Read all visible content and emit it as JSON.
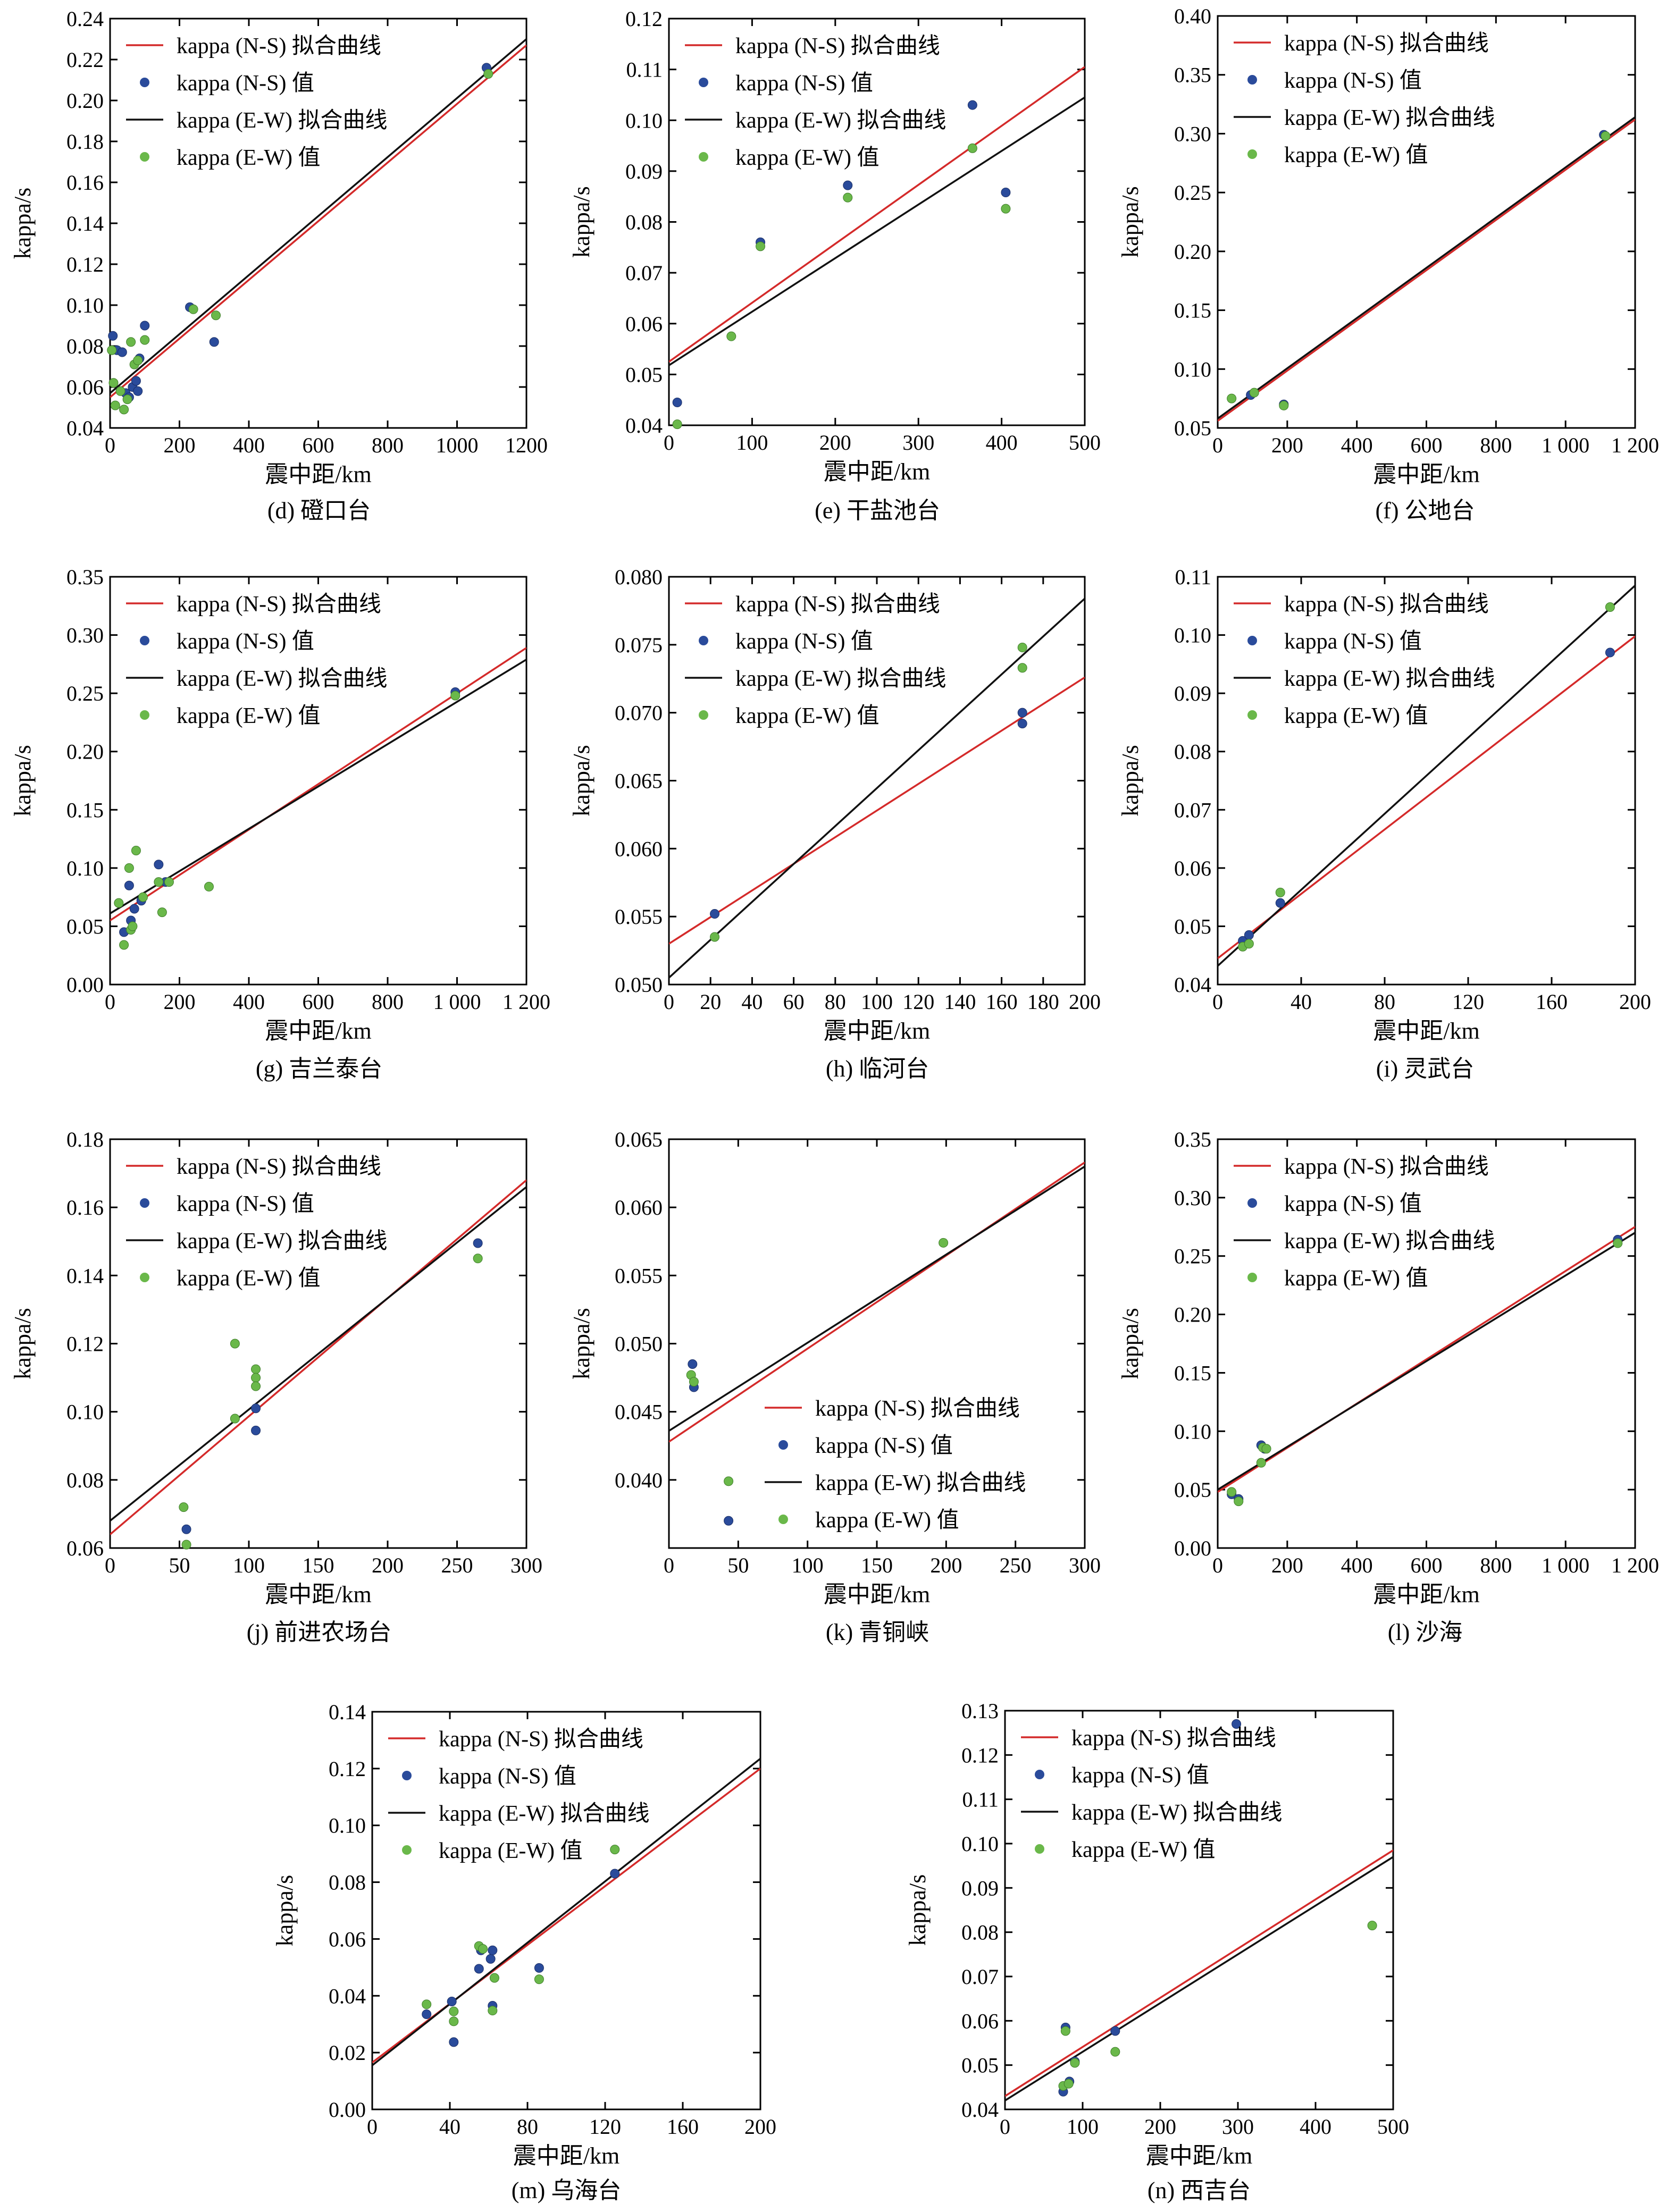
{
  "legend_labels": {
    "ns_fit": "kappa (N-S) 拟合曲线",
    "ns_val": "kappa (N-S) 值",
    "ew_fit": "kappa (E-W) 拟合曲线",
    "ew_val": "kappa (E-W) 值"
  },
  "colors": {
    "ns_line": "#d42a2a",
    "ew_line": "#111111",
    "ns_point": "#2a4b9b",
    "ew_point": "#6ab84a"
  },
  "chart_data": [
    {
      "type": "scatter",
      "caption": "(d) 磴口台",
      "xlabel": "震中距/km",
      "ylabel": "kappa/s",
      "xlim": [
        0,
        1200
      ],
      "ylim": [
        0.04,
        0.24
      ],
      "xticks": [
        0,
        200,
        400,
        600,
        800,
        1000,
        1200
      ],
      "xtick_labels": [
        "0",
        "200",
        "400",
        "600",
        "800",
        "1000",
        "1200"
      ],
      "yticks": [
        0.04,
        0.06,
        0.08,
        0.1,
        0.12,
        0.14,
        0.16,
        0.18,
        0.2,
        0.22,
        0.24
      ],
      "ytick_labels": [
        "0.04",
        "0.06",
        "0.08",
        "0.10",
        "0.12",
        "0.14",
        "0.16",
        "0.18",
        "0.20",
        "0.22",
        "0.24"
      ],
      "legend_position": "top-left",
      "ns_fit": [
        [
          0,
          0.055
        ],
        [
          1200,
          0.227
        ]
      ],
      "ew_fit": [
        [
          0,
          0.057
        ],
        [
          1200,
          0.23
        ]
      ],
      "ns_points": [
        [
          8,
          0.085
        ],
        [
          20,
          0.078
        ],
        [
          35,
          0.077
        ],
        [
          45,
          0.057
        ],
        [
          55,
          0.055
        ],
        [
          65,
          0.06
        ],
        [
          75,
          0.063
        ],
        [
          80,
          0.058
        ],
        [
          85,
          0.074
        ],
        [
          100,
          0.09
        ],
        [
          230,
          0.099
        ],
        [
          300,
          0.082
        ],
        [
          1085,
          0.216
        ]
      ],
      "ew_points": [
        [
          5,
          0.078
        ],
        [
          10,
          0.062
        ],
        [
          15,
          0.051
        ],
        [
          30,
          0.058
        ],
        [
          40,
          0.049
        ],
        [
          50,
          0.054
        ],
        [
          60,
          0.082
        ],
        [
          70,
          0.071
        ],
        [
          80,
          0.073
        ],
        [
          100,
          0.083
        ],
        [
          240,
          0.098
        ],
        [
          305,
          0.095
        ],
        [
          1090,
          0.213
        ]
      ]
    },
    {
      "type": "scatter",
      "caption": "(e) 干盐池台",
      "xlabel": "震中距/km",
      "ylabel": "kappa/s",
      "xlim": [
        0,
        500
      ],
      "ylim": [
        0.04,
        0.12
      ],
      "xticks": [
        0,
        100,
        200,
        300,
        400,
        500
      ],
      "xtick_labels": [
        "0",
        "100",
        "200",
        "300",
        "400",
        "500"
      ],
      "yticks": [
        0.04,
        0.05,
        0.06,
        0.07,
        0.08,
        0.09,
        0.1,
        0.11,
        0.12
      ],
      "ytick_labels": [
        "0.04",
        "0.05",
        "0.06",
        "0.07",
        "0.08",
        "0.09",
        "0.10",
        "0.11",
        "0.12"
      ],
      "legend_position": "top-left",
      "ns_fit": [
        [
          0,
          0.0525
        ],
        [
          500,
          0.1105
        ]
      ],
      "ew_fit": [
        [
          0,
          0.0518
        ],
        [
          500,
          0.1045
        ]
      ],
      "ns_points": [
        [
          10,
          0.0445
        ],
        [
          110,
          0.076
        ],
        [
          215,
          0.0872
        ],
        [
          365,
          0.103
        ],
        [
          405,
          0.0858
        ]
      ],
      "ew_points": [
        [
          10,
          0.0402
        ],
        [
          75,
          0.0575
        ],
        [
          110,
          0.0752
        ],
        [
          215,
          0.0848
        ],
        [
          365,
          0.0945
        ],
        [
          405,
          0.0826
        ]
      ]
    },
    {
      "type": "scatter",
      "caption": "(f) 公地台",
      "xlabel": "震中距/km",
      "ylabel": "kappa/s",
      "xlim": [
        0,
        1200
      ],
      "ylim": [
        0.05,
        0.4
      ],
      "xticks": [
        0,
        200,
        400,
        600,
        800,
        1000,
        1200
      ],
      "xtick_labels": [
        "0",
        "200",
        "400",
        "600",
        "800",
        "1 000",
        "1 200"
      ],
      "yticks": [
        0.05,
        0.1,
        0.15,
        0.2,
        0.25,
        0.3,
        0.35,
        0.4
      ],
      "ytick_labels": [
        "0.05",
        "0.10",
        "0.15",
        "0.20",
        "0.25",
        "0.30",
        "0.35",
        "0.40"
      ],
      "legend_position": "top-left",
      "ns_fit": [
        [
          0,
          0.056
        ],
        [
          1200,
          0.312
        ]
      ],
      "ew_fit": [
        [
          0,
          0.058
        ],
        [
          1200,
          0.314
        ]
      ],
      "ns_points": [
        [
          95,
          0.078
        ],
        [
          190,
          0.07
        ],
        [
          1110,
          0.299
        ]
      ],
      "ew_points": [
        [
          40,
          0.075
        ],
        [
          105,
          0.08
        ],
        [
          190,
          0.069
        ],
        [
          1115,
          0.298
        ]
      ]
    },
    {
      "type": "scatter",
      "caption": "(g) 吉兰泰台",
      "xlabel": "震中距/km",
      "ylabel": "kappa/s",
      "xlim": [
        0,
        1200
      ],
      "ylim": [
        0.0,
        0.35
      ],
      "xticks": [
        0,
        200,
        400,
        600,
        800,
        1000,
        1200
      ],
      "xtick_labels": [
        "0",
        "200",
        "400",
        "600",
        "800",
        "1 000",
        "1 200"
      ],
      "yticks": [
        0.0,
        0.05,
        0.1,
        0.15,
        0.2,
        0.25,
        0.3,
        0.35
      ],
      "ytick_labels": [
        "0.00",
        "0.05",
        "0.10",
        "0.15",
        "0.20",
        "0.25",
        "0.30",
        "0.35"
      ],
      "legend_position": "top-left",
      "ns_fit": [
        [
          0,
          0.055
        ],
        [
          1200,
          0.289
        ]
      ],
      "ew_fit": [
        [
          0,
          0.061
        ],
        [
          1200,
          0.279
        ]
      ],
      "ns_points": [
        [
          40,
          0.045
        ],
        [
          55,
          0.085
        ],
        [
          60,
          0.055
        ],
        [
          70,
          0.065
        ],
        [
          90,
          0.072
        ],
        [
          140,
          0.103
        ],
        [
          160,
          0.088
        ],
        [
          995,
          0.251
        ]
      ],
      "ew_points": [
        [
          25,
          0.07
        ],
        [
          40,
          0.034
        ],
        [
          55,
          0.1
        ],
        [
          60,
          0.047
        ],
        [
          65,
          0.05
        ],
        [
          75,
          0.115
        ],
        [
          95,
          0.075
        ],
        [
          140,
          0.088
        ],
        [
          150,
          0.062
        ],
        [
          170,
          0.088
        ],
        [
          285,
          0.084
        ],
        [
          995,
          0.248
        ]
      ]
    },
    {
      "type": "scatter",
      "caption": "(h) 临河台",
      "xlabel": "震中距/km",
      "ylabel": "kappa/s",
      "xlim": [
        0,
        200
      ],
      "ylim": [
        0.05,
        0.08
      ],
      "xticks": [
        0,
        20,
        40,
        60,
        80,
        100,
        120,
        140,
        160,
        180,
        200
      ],
      "xtick_labels": [
        "0",
        "20",
        "40",
        "60",
        "80",
        "100",
        "120",
        "140",
        "160",
        "180",
        "200"
      ],
      "yticks": [
        0.05,
        0.055,
        0.06,
        0.065,
        0.07,
        0.075,
        0.08
      ],
      "ytick_labels": [
        "0.050",
        "0.055",
        "0.060",
        "0.065",
        "0.070",
        "0.075",
        "0.080"
      ],
      "legend_position": "top-left",
      "ns_fit": [
        [
          0,
          0.053
        ],
        [
          200,
          0.0726
        ]
      ],
      "ew_fit": [
        [
          0,
          0.0505
        ],
        [
          200,
          0.0784
        ]
      ],
      "ns_points": [
        [
          22,
          0.0552
        ],
        [
          170,
          0.07
        ],
        [
          170,
          0.0692
        ]
      ],
      "ew_points": [
        [
          22,
          0.0535
        ],
        [
          170,
          0.0748
        ],
        [
          170,
          0.0733
        ]
      ]
    },
    {
      "type": "scatter",
      "caption": "(i) 灵武台",
      "xlabel": "震中距/km",
      "ylabel": "kappa/s",
      "xlim": [
        0,
        200
      ],
      "ylim": [
        0.04,
        0.11
      ],
      "xticks": [
        0,
        40,
        80,
        120,
        160,
        200
      ],
      "xtick_labels": [
        "0",
        "40",
        "80",
        "120",
        "160",
        "200"
      ],
      "yticks": [
        0.04,
        0.05,
        0.06,
        0.07,
        0.08,
        0.09,
        0.1,
        0.11
      ],
      "ytick_labels": [
        "0.04",
        "0.05",
        "0.06",
        "0.07",
        "0.08",
        "0.09",
        "0.10",
        "0.11"
      ],
      "legend_position": "top-left",
      "ns_fit": [
        [
          0,
          0.0445
        ],
        [
          200,
          0.0998
        ]
      ],
      "ew_fit": [
        [
          0,
          0.0432
        ],
        [
          200,
          0.1085
        ]
      ],
      "ns_points": [
        [
          12,
          0.0475
        ],
        [
          15,
          0.0485
        ],
        [
          30,
          0.054
        ],
        [
          188,
          0.097
        ]
      ],
      "ew_points": [
        [
          12,
          0.0465
        ],
        [
          15,
          0.047
        ],
        [
          30,
          0.0558
        ],
        [
          188,
          0.1048
        ]
      ]
    },
    {
      "type": "scatter",
      "caption": "(j) 前进农场台",
      "xlabel": "震中距/km",
      "ylabel": "kappa/s",
      "xlim": [
        0,
        300
      ],
      "ylim": [
        0.06,
        0.18
      ],
      "xticks": [
        0,
        50,
        100,
        150,
        200,
        250,
        300
      ],
      "xtick_labels": [
        "0",
        "50",
        "100",
        "150",
        "200",
        "250",
        "300"
      ],
      "yticks": [
        0.06,
        0.08,
        0.1,
        0.12,
        0.14,
        0.16,
        0.18
      ],
      "ytick_labels": [
        "0.06",
        "0.08",
        "0.10",
        "0.12",
        "0.14",
        "0.16",
        "0.18"
      ],
      "legend_position": "top-left",
      "ns_fit": [
        [
          0,
          0.064
        ],
        [
          300,
          0.168
        ]
      ],
      "ew_fit": [
        [
          0,
          0.068
        ],
        [
          300,
          0.166
        ]
      ],
      "ns_points": [
        [
          55,
          0.0655
        ],
        [
          105,
          0.101
        ],
        [
          105,
          0.0945
        ],
        [
          265,
          0.1495
        ]
      ],
      "ew_points": [
        [
          53,
          0.072
        ],
        [
          55,
          0.061
        ],
        [
          90,
          0.098
        ],
        [
          90,
          0.12
        ],
        [
          105,
          0.1125
        ],
        [
          105,
          0.11
        ],
        [
          105,
          0.1075
        ],
        [
          265,
          0.145
        ]
      ]
    },
    {
      "type": "scatter",
      "caption": "(k) 青铜峡",
      "xlabel": "震中距/km",
      "ylabel": "kappa/s",
      "xlim": [
        0,
        300
      ],
      "ylim": [
        0.035,
        0.065
      ],
      "xticks": [
        0,
        50,
        100,
        150,
        200,
        250,
        300
      ],
      "xtick_labels": [
        "0",
        "50",
        "100",
        "150",
        "200",
        "250",
        "300"
      ],
      "yticks": [
        0.04,
        0.045,
        0.05,
        0.055,
        0.06,
        0.065
      ],
      "ytick_labels": [
        "0.040",
        "0.045",
        "0.050",
        "0.055",
        "0.060",
        "0.065"
      ],
      "legend_position": "center",
      "ns_fit": [
        [
          0,
          0.0428
        ],
        [
          300,
          0.0633
        ]
      ],
      "ew_fit": [
        [
          0,
          0.0436
        ],
        [
          300,
          0.063
        ]
      ],
      "ns_points": [
        [
          17,
          0.0485
        ],
        [
          18,
          0.0468
        ],
        [
          43,
          0.037
        ]
      ],
      "ew_points": [
        [
          16,
          0.0477
        ],
        [
          18,
          0.0472
        ],
        [
          43,
          0.0399
        ],
        [
          198,
          0.0574
        ]
      ]
    },
    {
      "type": "scatter",
      "caption": "(l) 沙海",
      "xlabel": "震中距/km",
      "ylabel": "kappa/s",
      "xlim": [
        0,
        1200
      ],
      "ylim": [
        0.0,
        0.35
      ],
      "xticks": [
        0,
        200,
        400,
        600,
        800,
        1000,
        1200
      ],
      "xtick_labels": [
        "0",
        "200",
        "400",
        "600",
        "800",
        "1 000",
        "1 200"
      ],
      "yticks": [
        0.0,
        0.05,
        0.1,
        0.15,
        0.2,
        0.25,
        0.3,
        0.35
      ],
      "ytick_labels": [
        "0.00",
        "0.05",
        "0.10",
        "0.15",
        "0.20",
        "0.25",
        "0.30",
        "0.35"
      ],
      "legend_position": "top-left",
      "ns_fit": [
        [
          0,
          0.048
        ],
        [
          1200,
          0.275
        ]
      ],
      "ew_fit": [
        [
          0,
          0.05
        ],
        [
          1200,
          0.27
        ]
      ],
      "ns_points": [
        [
          40,
          0.046
        ],
        [
          60,
          0.042
        ],
        [
          125,
          0.088
        ],
        [
          135,
          0.085
        ],
        [
          1150,
          0.264
        ]
      ],
      "ew_points": [
        [
          40,
          0.048
        ],
        [
          60,
          0.04
        ],
        [
          125,
          0.073
        ],
        [
          130,
          0.086
        ],
        [
          140,
          0.085
        ],
        [
          1150,
          0.261
        ]
      ]
    },
    {
      "type": "scatter",
      "caption": "(m) 乌海台",
      "xlabel": "震中距/km",
      "ylabel": "kappa/s",
      "xlim": [
        0,
        200
      ],
      "ylim": [
        0.0,
        0.14
      ],
      "xticks": [
        0,
        40,
        80,
        120,
        160,
        200
      ],
      "xtick_labels": [
        "0",
        "40",
        "80",
        "120",
        "160",
        "200"
      ],
      "yticks": [
        0.0,
        0.02,
        0.04,
        0.06,
        0.08,
        0.1,
        0.12,
        0.14
      ],
      "ytick_labels": [
        "0.00",
        "0.02",
        "0.04",
        "0.06",
        "0.08",
        "0.10",
        "0.12",
        "0.14"
      ],
      "legend_position": "top-left",
      "ns_fit": [
        [
          0,
          0.0165
        ],
        [
          200,
          0.12
        ]
      ],
      "ew_fit": [
        [
          0,
          0.0155
        ],
        [
          200,
          0.1235
        ]
      ],
      "ns_points": [
        [
          28,
          0.0335
        ],
        [
          41,
          0.038
        ],
        [
          42,
          0.0237
        ],
        [
          55,
          0.0495
        ],
        [
          56,
          0.056
        ],
        [
          61,
          0.053
        ],
        [
          62,
          0.0365
        ],
        [
          62,
          0.056
        ],
        [
          86,
          0.0498
        ],
        [
          125,
          0.083
        ]
      ],
      "ew_points": [
        [
          28,
          0.037
        ],
        [
          42,
          0.0345
        ],
        [
          42,
          0.031
        ],
        [
          55,
          0.0575
        ],
        [
          57,
          0.0565
        ],
        [
          62,
          0.0348
        ],
        [
          63,
          0.0463
        ],
        [
          86,
          0.0458
        ],
        [
          125,
          0.0915
        ]
      ]
    },
    {
      "type": "scatter",
      "caption": "(n) 西吉台",
      "xlabel": "震中距/km",
      "ylabel": "kappa/s",
      "xlim": [
        0,
        500
      ],
      "ylim": [
        0.04,
        0.13
      ],
      "xticks": [
        0,
        100,
        200,
        300,
        400,
        500
      ],
      "xtick_labels": [
        "0",
        "100",
        "200",
        "300",
        "400",
        "500"
      ],
      "yticks": [
        0.04,
        0.05,
        0.06,
        0.07,
        0.08,
        0.09,
        0.1,
        0.11,
        0.12,
        0.13
      ],
      "ytick_labels": [
        "0.04",
        "0.05",
        "0.06",
        "0.07",
        "0.08",
        "0.09",
        "0.10",
        "0.11",
        "0.12",
        "0.13"
      ],
      "legend_position": "top-left",
      "ns_fit": [
        [
          0,
          0.043
        ],
        [
          500,
          0.0985
        ]
      ],
      "ew_fit": [
        [
          0,
          0.042
        ],
        [
          500,
          0.097
        ]
      ],
      "ns_points": [
        [
          75,
          0.044
        ],
        [
          78,
          0.0585
        ],
        [
          83,
          0.0463
        ],
        [
          90,
          0.0508
        ],
        [
          142,
          0.0577
        ],
        [
          298,
          0.127
        ]
      ],
      "ew_points": [
        [
          75,
          0.0453
        ],
        [
          78,
          0.0577
        ],
        [
          82,
          0.0458
        ],
        [
          90,
          0.0505
        ],
        [
          142,
          0.053
        ],
        [
          473,
          0.0815
        ]
      ]
    }
  ]
}
